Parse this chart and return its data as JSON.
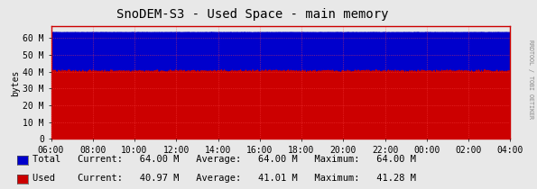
{
  "title": "SnoDEM-S3 - Used Space - main memory",
  "ylabel": "bytes",
  "bg_color": "#e8e8e8",
  "plot_bg_color": "#e8e8e8",
  "total_value": 64.0,
  "used_value": 41.0,
  "total_color": "#0000cc",
  "used_color": "#cc0000",
  "ylim": [
    0,
    67
  ],
  "yticks": [
    0,
    10,
    20,
    30,
    40,
    50,
    60
  ],
  "ytick_labels": [
    "0",
    "10 M",
    "20 M",
    "30 M",
    "40 M",
    "50 M",
    "60 M"
  ],
  "xtick_labels": [
    "06:00",
    "08:00",
    "10:00",
    "12:00",
    "14:00",
    "16:00",
    "18:00",
    "20:00",
    "22:00",
    "00:00",
    "02:00",
    "04:00"
  ],
  "n_points": 600,
  "noise_scale_total": 0.05,
  "noise_scale_used": 0.4,
  "grid_color": "#ff4444",
  "title_color": "#000000",
  "title_fontsize": 10,
  "tick_fontsize": 7,
  "legend_fontsize": 7.5,
  "side_label": "RRDTOOL / TOBI OETIKER",
  "legend_items": [
    {
      "label": "Total",
      "color": "#0000cc"
    },
    {
      "label": "Used",
      "color": "#cc0000"
    }
  ],
  "legend_stats": [
    {
      "current": "64.00 M",
      "average": "64.00 M",
      "maximum": "64.00 M"
    },
    {
      "current": "40.97 M",
      "average": "41.01 M",
      "maximum": "41.28 M"
    }
  ]
}
